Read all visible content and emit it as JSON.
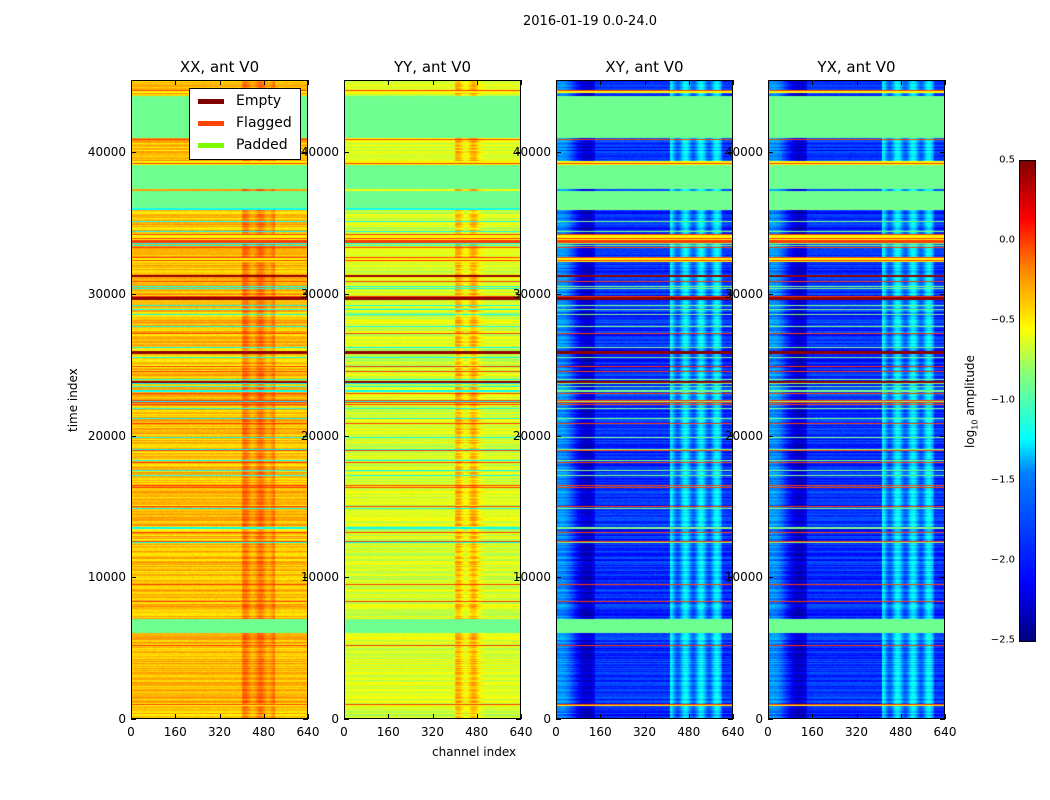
{
  "chart_data": {
    "type": "heatmap",
    "suptitle": "2016-01-19 0.0-24.0",
    "xlabel": "channel index",
    "ylabel": "time index",
    "xlim": [
      0,
      640
    ],
    "ylim": [
      0,
      45080
    ],
    "xticks": [
      "0",
      "160",
      "320",
      "480",
      "640"
    ],
    "yticks": [
      "0",
      "10000",
      "20000",
      "30000",
      "40000"
    ],
    "panels": [
      {
        "title": "XX, ant V0",
        "base": -0.45,
        "bright_cols": [
          400,
          520
        ],
        "col_boost": 0.25
      },
      {
        "title": "YY, ant V0",
        "base": -0.75,
        "bright_cols": [
          400,
          500
        ],
        "col_boost": 0.35
      },
      {
        "title": "XY, ant V0",
        "base": -2.0,
        "bright_cols": [
          410,
          600
        ],
        "col_boost": 0.6
      },
      {
        "title": "YX, ant V0",
        "base": -2.0,
        "bright_cols": [
          410,
          600
        ],
        "col_boost": 0.6
      }
    ],
    "padded_ranges": [
      [
        36100,
        37300
      ],
      [
        37400,
        39100
      ],
      [
        41000,
        44000
      ],
      [
        6100,
        7100
      ]
    ],
    "flagged_ranges": [
      [
        39150,
        39400
      ],
      [
        33600,
        34200
      ],
      [
        32300,
        32600
      ],
      [
        44200,
        44400
      ],
      [
        950,
        1100
      ]
    ],
    "empty_rows": [
      25900,
      29700,
      31300,
      23800
    ],
    "legend": {
      "position": "upper-right of first panel",
      "items": [
        {
          "label": "Empty",
          "color": "#800000"
        },
        {
          "label": "Flagged",
          "color": "#ff4500"
        },
        {
          "label": "Padded",
          "color": "#7cfc00"
        }
      ]
    },
    "colorbar": {
      "label": "log10 amplitude",
      "label_main": "log",
      "label_sub": "10",
      "label_rest": " amplitude",
      "range": [
        -2.5,
        0.5
      ],
      "ticks": [
        "0.5",
        "0.0",
        "−0.5",
        "−1.0",
        "−1.5",
        "−2.0",
        "−2.5"
      ],
      "colormap": "jet"
    }
  }
}
